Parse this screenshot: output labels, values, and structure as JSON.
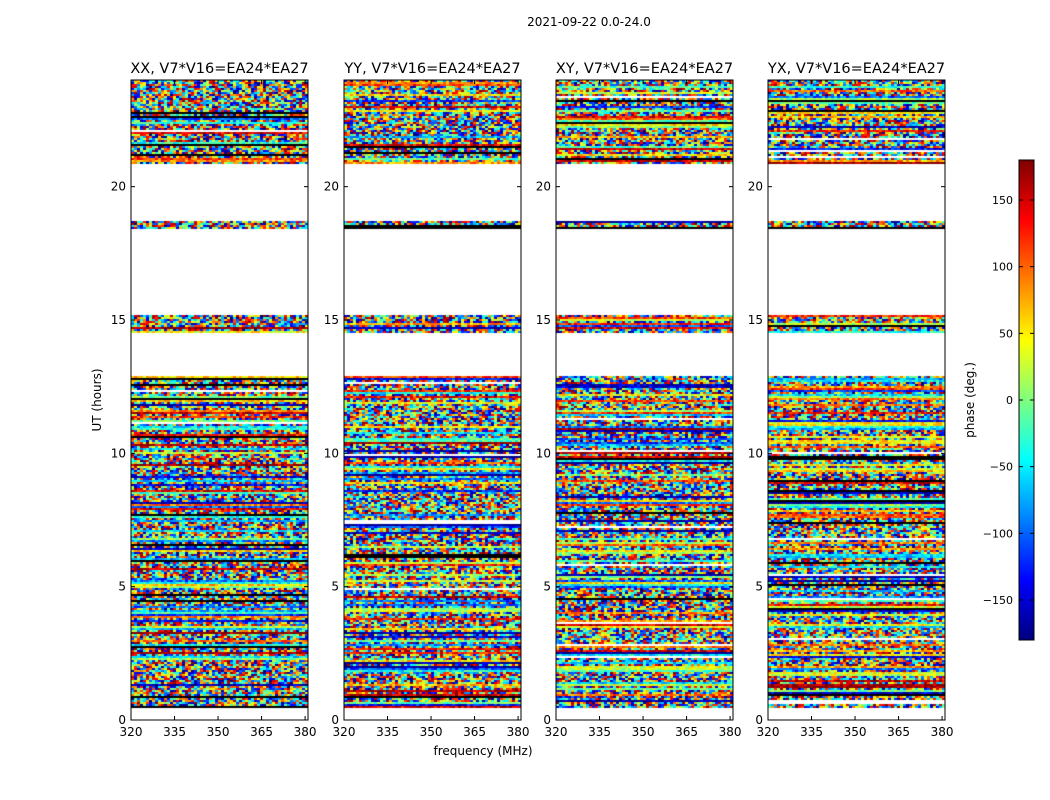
{
  "chart_data": {
    "type": "heatmap",
    "suptitle": "2021-09-22 0.0-24.0",
    "xlabel": "frequency (MHz)",
    "ylabel": "UT (hours)",
    "xlim": [
      320,
      381
    ],
    "ylim": [
      0,
      24
    ],
    "xticks": [
      320,
      335,
      350,
      365,
      380
    ],
    "yticks": [
      0,
      5,
      10,
      15,
      20
    ],
    "panels": [
      {
        "title": "XX, V7*V16=EA24*EA27",
        "pol": "XX"
      },
      {
        "title": "YY, V7*V16=EA24*EA27",
        "pol": "YY"
      },
      {
        "title": "XY, V7*V16=EA24*EA27",
        "pol": "XY"
      },
      {
        "title": "YX, V7*V16=EA24*EA27",
        "pol": "YX"
      }
    ],
    "data_intervals_ut": [
      [
        0.5,
        12.9
      ],
      [
        14.5,
        15.2
      ],
      [
        18.4,
        18.7
      ],
      [
        20.9,
        24.0
      ]
    ],
    "colorbar": {
      "label": "phase (deg.)",
      "range": [
        -180,
        180
      ],
      "ticks": [
        -150,
        -100,
        -50,
        0,
        50,
        100,
        150
      ],
      "colormap": "jet",
      "colors": [
        "#00007f",
        "#0000ff",
        "#007fff",
        "#00ffff",
        "#7fff7f",
        "#ffff00",
        "#ff7f00",
        "#ff0000",
        "#7f0000"
      ]
    }
  }
}
